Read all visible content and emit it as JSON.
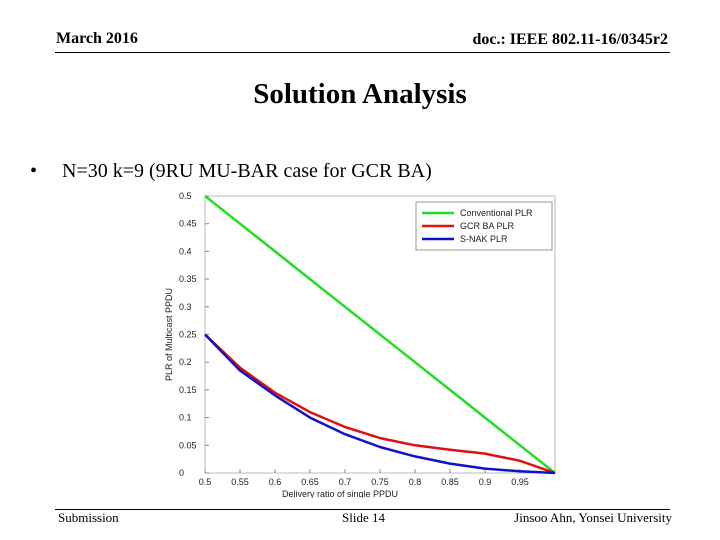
{
  "header": {
    "date": "March 2016",
    "doc": "doc.: IEEE 802.11-16/0345r2"
  },
  "title": "Solution Analysis",
  "bullet": {
    "symbol": "•",
    "text": "N=30 k=9 (9RU MU-BAR case for GCR BA)"
  },
  "footer": {
    "left": "Submission",
    "middle": "Slide 14",
    "right": "Jinsoo Ahn, Yonsei University"
  },
  "chart_data": {
    "type": "line",
    "xlabel": "Delivery ratio of single PPDU",
    "ylabel": "PLR of Multicast PPDU",
    "xlim": [
      0.5,
      1.0
    ],
    "ylim": [
      0,
      0.5
    ],
    "xticks": [
      "0.5",
      "0.55",
      "0.6",
      "0.65",
      "0.7",
      "0.75",
      "0.8",
      "0.85",
      "0.9",
      "0.95"
    ],
    "yticks": [
      "0",
      "0.05",
      "0.1",
      "0.15",
      "0.2",
      "0.25",
      "0.3",
      "0.35",
      "0.4",
      "0.45",
      "0.5"
    ],
    "legend_position": "top-right",
    "x": [
      0.5,
      0.55,
      0.6,
      0.65,
      0.7,
      0.75,
      0.8,
      0.85,
      0.9,
      0.95,
      1.0
    ],
    "series": [
      {
        "name": "Conventional PLR",
        "color": "#22dd22",
        "values": [
          0.5,
          0.45,
          0.4,
          0.35,
          0.3,
          0.25,
          0.2,
          0.15,
          0.1,
          0.05,
          0.0
        ]
      },
      {
        "name": "GCR BA PLR",
        "color": "#dd1111",
        "values": [
          0.25,
          0.19,
          0.145,
          0.11,
          0.083,
          0.063,
          0.05,
          0.042,
          0.035,
          0.022,
          0.0
        ]
      },
      {
        "name": "S-NAK PLR",
        "color": "#1111cc",
        "values": [
          0.25,
          0.185,
          0.14,
          0.1,
          0.07,
          0.047,
          0.03,
          0.017,
          0.008,
          0.003,
          0.0
        ]
      }
    ]
  }
}
